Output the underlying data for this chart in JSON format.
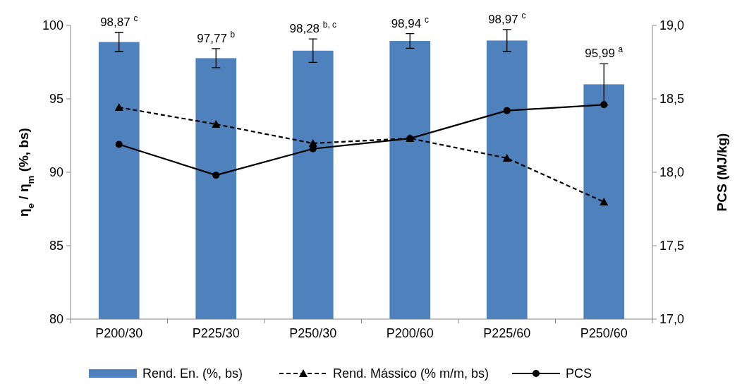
{
  "chart_data": {
    "type": "bar",
    "ylabel": "η$_{e}$ / η$_{m}$ (%, bs)",
    "y2label": "PCS (MJ/kg)",
    "categories": [
      "P200/30",
      "P225/30",
      "P250/30",
      "P200/60",
      "P225/60",
      "P250/60"
    ],
    "series": [
      {
        "name": "Rend. En. (%, bs)",
        "color": "#4f81bd",
        "values": [
          98.87,
          97.77,
          98.28,
          98.94,
          98.97,
          95.99
        ],
        "errors": [
          0.65,
          0.65,
          0.8,
          0.5,
          0.75,
          1.4
        ],
        "value_labels": [
          "98,87 $^{c}$",
          "97,77 $^{b}$",
          "98,28 $^{b, c}$",
          "98,94 $^{c}$",
          "98,97 $^{c}$",
          "95,99 $^{a}$"
        ]
      },
      {
        "name": "Rend. Mássico (% m/m, bs)",
        "type": "line",
        "color": "#000000",
        "marker": "triangle",
        "line_style": "dashed",
        "values": [
          94.42,
          93.27,
          91.97,
          92.31,
          90.96,
          87.98
        ]
      },
      {
        "name": "PCS",
        "type": "line",
        "axis": "y2",
        "color": "#000000",
        "marker": "circle",
        "line_style": "solid",
        "values": [
          18.19,
          17.98,
          18.16,
          18.23,
          18.42,
          18.46
        ]
      }
    ],
    "ylim": [
      80,
      100
    ],
    "yticks": [
      80,
      85,
      90,
      95,
      100
    ],
    "y2lim": [
      17,
      19
    ],
    "y2ticks": [
      {
        "value": 17,
        "label": "17,0"
      },
      {
        "value": 17.5,
        "label": "17,5"
      },
      {
        "value": 18,
        "label": "18,0"
      },
      {
        "value": 18.5,
        "label": "18,5"
      },
      {
        "value": 19,
        "label": "19,0"
      }
    ],
    "grid": false,
    "legend": "bottom"
  }
}
